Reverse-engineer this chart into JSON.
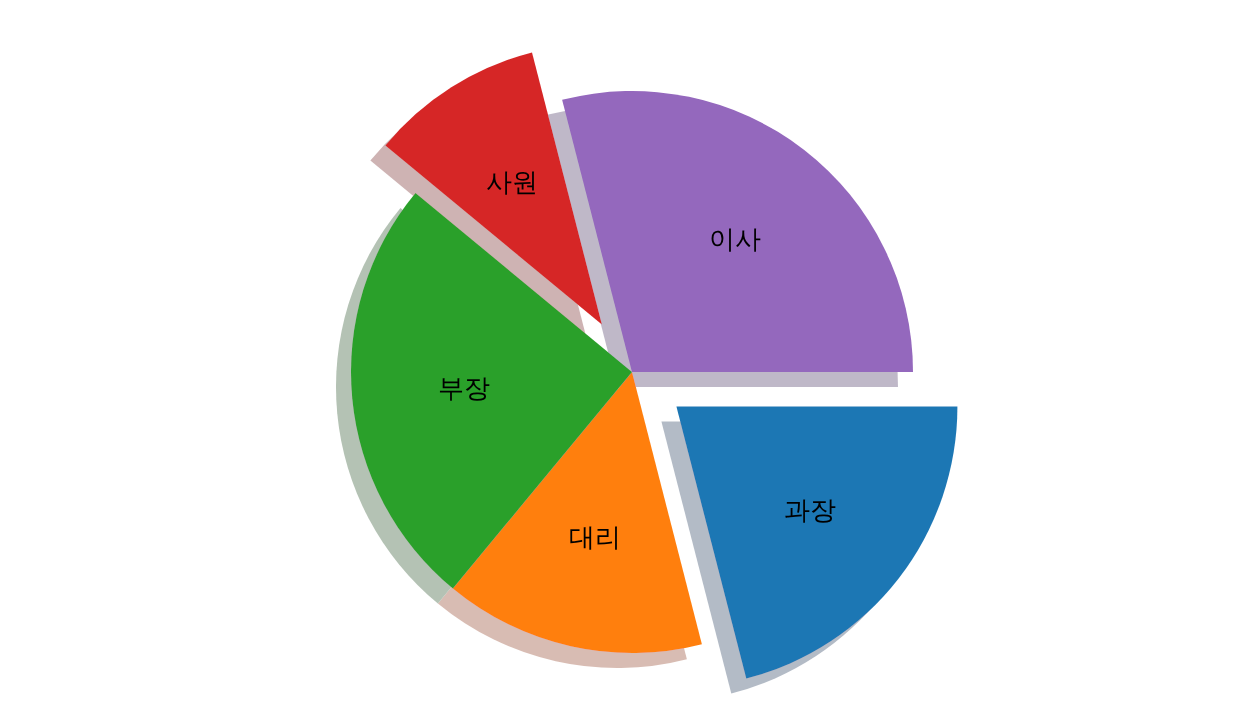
{
  "chart_data": {
    "type": "pie",
    "categories": [
      "과장",
      "대리",
      "부장",
      "사원",
      "이사"
    ],
    "values": [
      21,
      15,
      25,
      10,
      29
    ],
    "colors": [
      "#1f77b4",
      "#ff7f0e",
      "#2ca02c",
      "#d62728",
      "#9467bd"
    ]
  }
}
